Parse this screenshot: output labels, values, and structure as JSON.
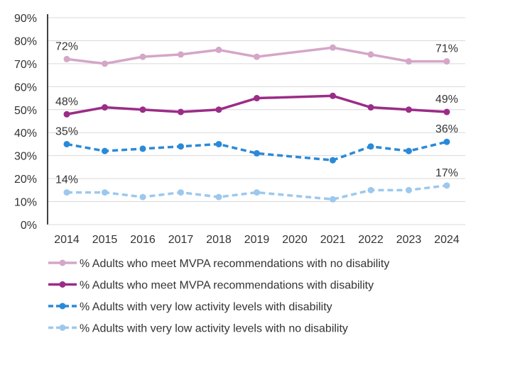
{
  "chart_data": {
    "type": "line",
    "title": "",
    "xlabel": "",
    "ylabel": "",
    "ylim": [
      0,
      90
    ],
    "y_ticks": [
      "0%",
      "10%",
      "20%",
      "30%",
      "40%",
      "50%",
      "60%",
      "70%",
      "80%",
      "90%"
    ],
    "grid": "horizontal",
    "legend_placement": "bottom",
    "categories": [
      "2014",
      "2015",
      "2016",
      "2017",
      "2018",
      "2019",
      "2020",
      "2021",
      "2022",
      "2023",
      "2024"
    ],
    "series": [
      {
        "name": "% Adults who meet MVPA recommendations with no disability",
        "color": "#d4a6c8",
        "dashed": false,
        "values": [
          72,
          70,
          73,
          74,
          76,
          73,
          null,
          77,
          74,
          71,
          71
        ],
        "labels": [
          "72%",
          "71%"
        ]
      },
      {
        "name": "% Adults who meet MVPA recommendations with disability",
        "color": "#9b2c87",
        "dashed": false,
        "values": [
          48,
          51,
          50,
          49,
          50,
          55,
          null,
          56,
          51,
          50,
          49
        ],
        "labels": [
          "48%",
          "49%"
        ]
      },
      {
        "name": "% Adults with very low activity levels with disability",
        "color": "#2a8ad8",
        "dashed": true,
        "values": [
          35,
          32,
          33,
          34,
          35,
          31,
          null,
          28,
          34,
          32,
          36
        ],
        "labels": [
          "35%",
          "36%"
        ]
      },
      {
        "name": "% Adults with very low activity levels with no disability",
        "color": "#9cc8ee",
        "dashed": true,
        "values": [
          14,
          14,
          12,
          14,
          12,
          14,
          null,
          11,
          15,
          15,
          17
        ],
        "labels": [
          "14%",
          "17%"
        ]
      }
    ]
  }
}
